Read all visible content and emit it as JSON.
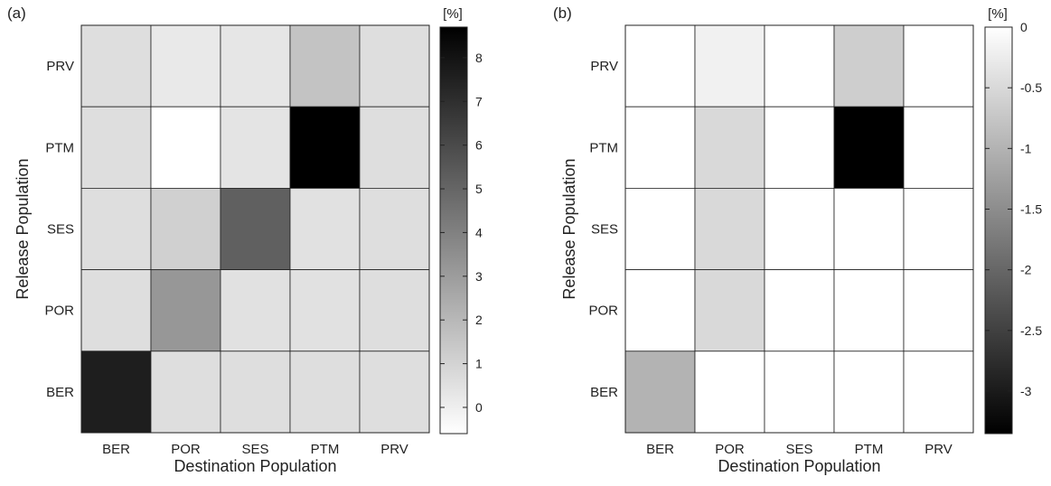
{
  "chart_data": [
    {
      "type": "heatmap",
      "panel_label": "(a)",
      "xlabel": "Destination Population",
      "ylabel": "Release Population",
      "x_categories": [
        "BER",
        "POR",
        "SES",
        "PTM",
        "PRV"
      ],
      "y_categories": [
        "PRV",
        "PTM",
        "SES",
        "POR",
        "BER"
      ],
      "values": [
        [
          0.6,
          0.2,
          0.3,
          1.6,
          0.6
        ],
        [
          0.6,
          -0.6,
          0.4,
          8.7,
          0.6
        ],
        [
          0.6,
          1.1,
          5.2,
          0.5,
          0.6
        ],
        [
          0.6,
          3.2,
          0.5,
          0.5,
          0.6
        ],
        [
          7.6,
          0.6,
          0.6,
          0.6,
          0.6
        ]
      ],
      "colorbar": {
        "unit": "[%]",
        "range": [
          -0.6,
          8.7
        ],
        "ticks": [
          0,
          1,
          2,
          3,
          4,
          5,
          6,
          7,
          8
        ],
        "colormap": "gray-reversed"
      }
    },
    {
      "type": "heatmap",
      "panel_label": "(b)",
      "xlabel": "Destination Population",
      "ylabel": "Release Population",
      "x_categories": [
        "BER",
        "POR",
        "SES",
        "PTM",
        "PRV"
      ],
      "y_categories": [
        "PRV",
        "PTM",
        "SES",
        "POR",
        "BER"
      ],
      "values": [
        [
          0,
          -0.18,
          0,
          -0.65,
          0
        ],
        [
          0,
          -0.5,
          0,
          -3.35,
          0
        ],
        [
          0,
          -0.5,
          0,
          0,
          0
        ],
        [
          0,
          -0.5,
          0,
          0,
          0
        ],
        [
          -1.0,
          0,
          0,
          0,
          0
        ]
      ],
      "colorbar": {
        "unit": "[%]",
        "range": [
          -3.35,
          0
        ],
        "ticks": [
          0,
          -0.5,
          -1,
          -1.5,
          -2,
          -2.5,
          -3
        ],
        "colormap": "gray"
      }
    }
  ]
}
